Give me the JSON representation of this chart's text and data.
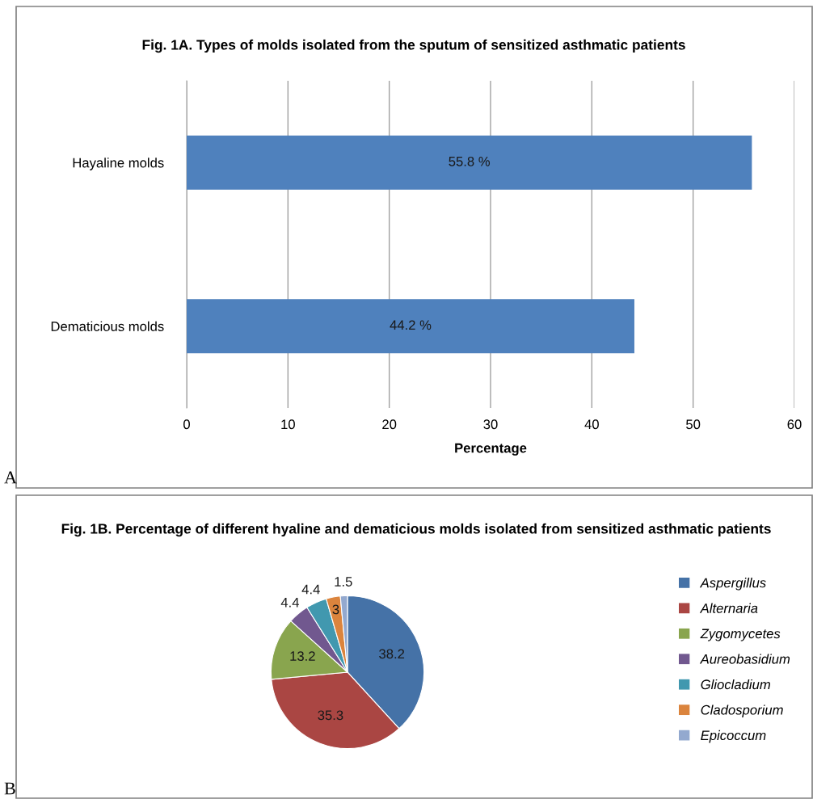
{
  "chart_data": [
    {
      "type": "bar",
      "orientation": "horizontal",
      "title": "Fig. 1A. Types of molds isolated from the sputum of sensitized asthmatic patients",
      "xlabel": "Percentage",
      "categories": [
        "Hayaline molds",
        "Dematicious molds"
      ],
      "values": [
        55.8,
        44.2
      ],
      "value_labels": [
        "55.8 %",
        "44.2 %"
      ],
      "color": "#4f81bd",
      "xlim": [
        0,
        60
      ],
      "xticks": [
        0,
        10,
        20,
        30,
        40,
        50,
        60
      ],
      "grid": "x",
      "annotations": [
        "A"
      ]
    },
    {
      "type": "pie",
      "title": "Fig. 1B. Percentage of different hyaline and dematicious molds isolated from sensitized asthmatic patients",
      "categories": [
        "Aspergillus",
        "Alternaria",
        "Zygomycetes",
        "Aureobasidium",
        "Gliocladium",
        "Cladosporium",
        "Epicoccum"
      ],
      "values": [
        38.2,
        35.3,
        13.2,
        4.4,
        4.4,
        3,
        1.5
      ],
      "colors": [
        "#4572a7",
        "#aa4643",
        "#89a54e",
        "#71588f",
        "#4198af",
        "#db843d",
        "#93a9cf"
      ],
      "data_labels": true,
      "legend": "right",
      "annotations": [
        "B"
      ]
    }
  ]
}
